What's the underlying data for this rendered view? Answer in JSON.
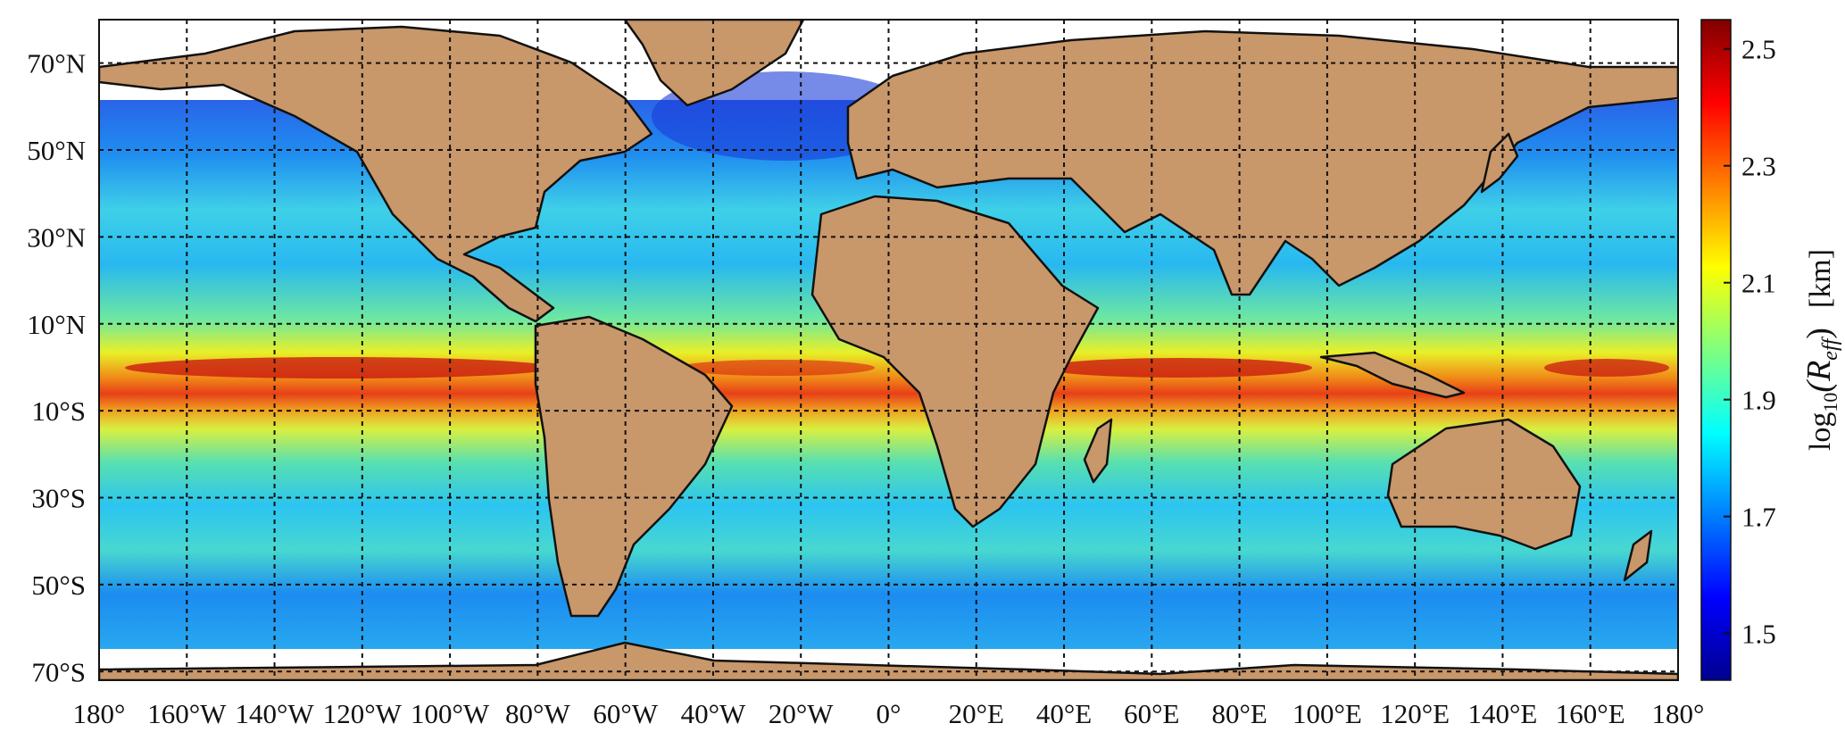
{
  "map": {
    "type": "global-heatmap",
    "projection": "plate-carree",
    "grid": "dashed",
    "lon_range": [
      -180,
      180
    ],
    "lat_range": [
      -72,
      80
    ],
    "lon_ticks": [
      {
        "value": -180,
        "label": "180°"
      },
      {
        "value": -160,
        "label": "160°W"
      },
      {
        "value": -140,
        "label": "140°W"
      },
      {
        "value": -120,
        "label": "120°W"
      },
      {
        "value": -100,
        "label": "100°W"
      },
      {
        "value": -80,
        "label": "80°W"
      },
      {
        "value": -60,
        "label": "60°W"
      },
      {
        "value": -40,
        "label": "40°W"
      },
      {
        "value": -20,
        "label": "20°W"
      },
      {
        "value": 0,
        "label": "0°"
      },
      {
        "value": 20,
        "label": "20°E"
      },
      {
        "value": 40,
        "label": "40°E"
      },
      {
        "value": 60,
        "label": "60°E"
      },
      {
        "value": 80,
        "label": "80°E"
      },
      {
        "value": 100,
        "label": "100°E"
      },
      {
        "value": 120,
        "label": "120°E"
      },
      {
        "value": 140,
        "label": "140°E"
      },
      {
        "value": 160,
        "label": "160°E"
      },
      {
        "value": 180,
        "label": "180°"
      }
    ],
    "lat_ticks": [
      {
        "value": 70,
        "label": "70°N"
      },
      {
        "value": 50,
        "label": "50°N"
      },
      {
        "value": 30,
        "label": "30°N"
      },
      {
        "value": 10,
        "label": "10°N"
      },
      {
        "value": -10,
        "label": "10°S"
      },
      {
        "value": -30,
        "label": "30°S"
      },
      {
        "value": -50,
        "label": "50°S"
      },
      {
        "value": -70,
        "label": "70°S"
      }
    ],
    "colors": {
      "land": "#c8976a",
      "coast": "#111111",
      "grid": "#111111",
      "no_data": "#ffffff"
    }
  },
  "colorbar": {
    "label_prefix": "log",
    "label_sub": "10",
    "label_var": "(R",
    "label_var_sub": "eff",
    "label_close": ")",
    "label_unit": "[km]",
    "range": [
      1.42,
      2.55
    ],
    "colormap": "jet",
    "ticks": [
      {
        "value": 2.5,
        "label": "2.5"
      },
      {
        "value": 2.3,
        "label": "2.3"
      },
      {
        "value": 2.1,
        "label": "2.1"
      },
      {
        "value": 1.9,
        "label": "1.9"
      },
      {
        "value": 1.7,
        "label": "1.7"
      },
      {
        "value": 1.5,
        "label": "1.5"
      }
    ]
  }
}
